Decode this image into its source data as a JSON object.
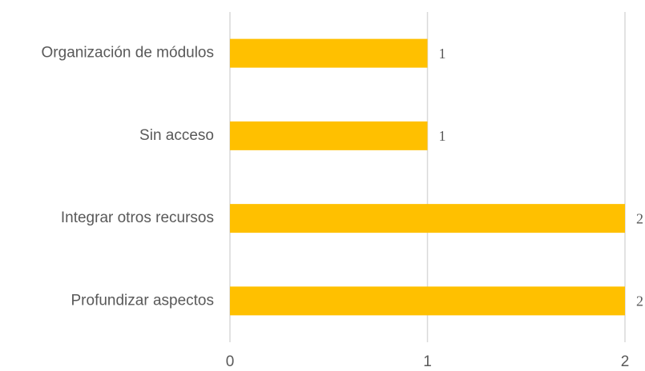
{
  "chart_data": {
    "type": "bar",
    "orientation": "horizontal",
    "categories": [
      "Organización de módulos",
      "Sin acceso",
      "Integrar otros recursos",
      "Profundizar aspectos"
    ],
    "values": [
      1,
      1,
      2,
      2
    ],
    "color": "#ffc000",
    "xlim": [
      0,
      2
    ],
    "xticks": [
      0,
      1,
      2
    ],
    "grid": true
  }
}
